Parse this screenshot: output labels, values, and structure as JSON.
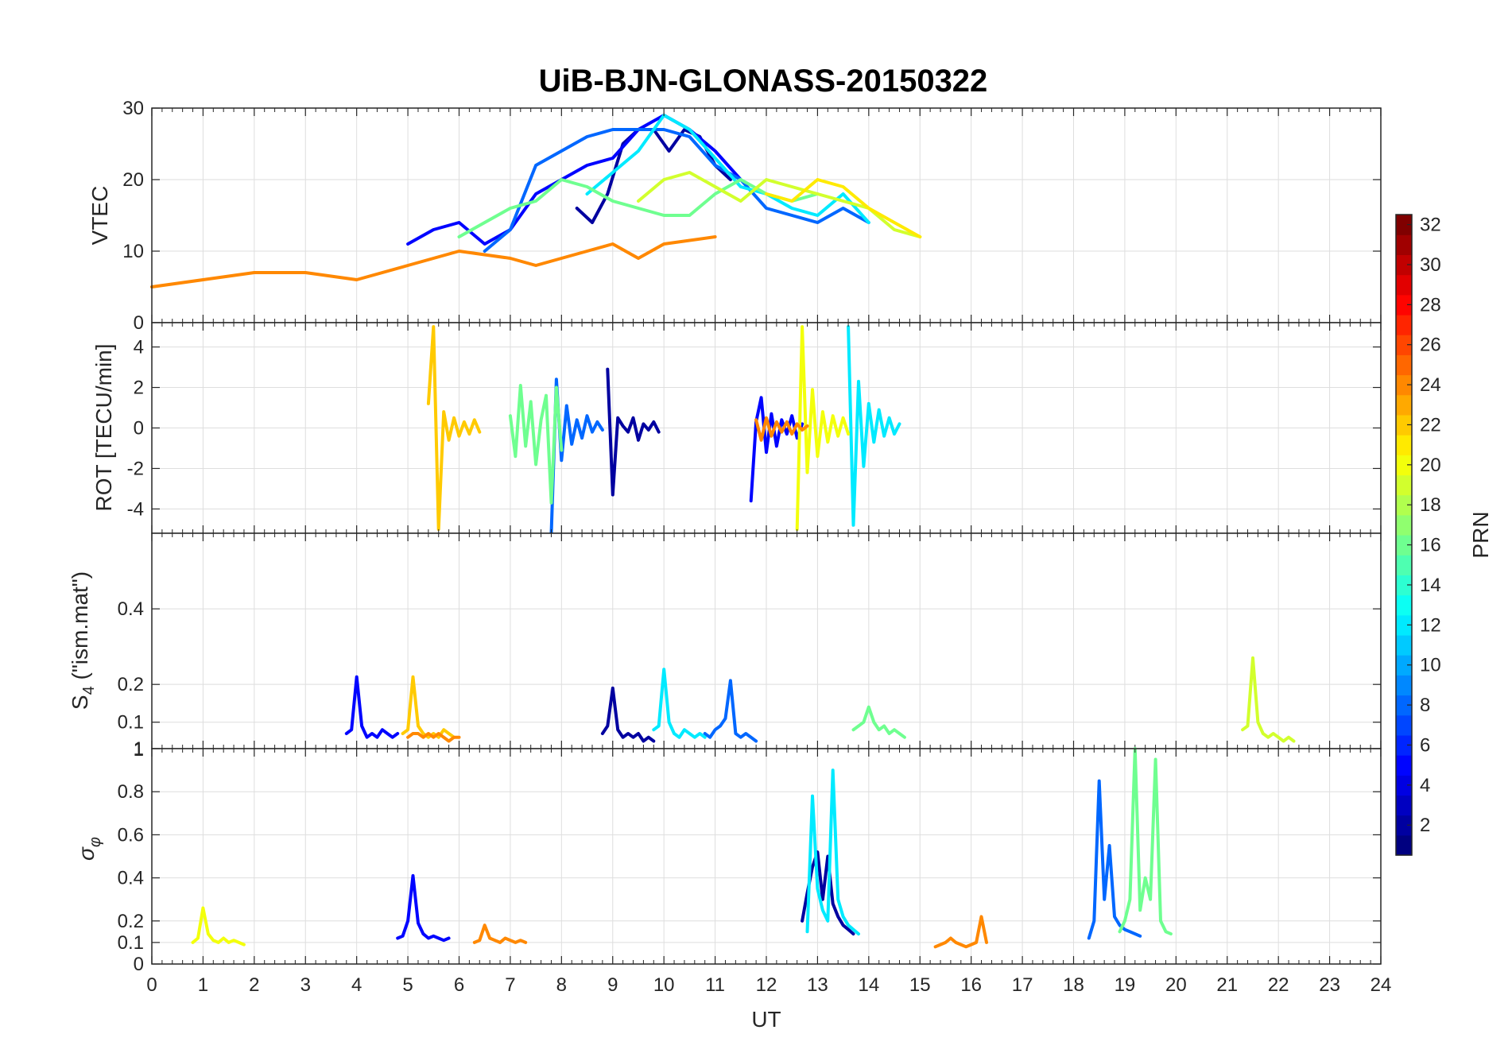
{
  "title": "UiB-BJN-GLONASS-20150322",
  "xlabel": "UT",
  "x_ticks": [
    0,
    1,
    2,
    3,
    4,
    5,
    6,
    7,
    8,
    9,
    10,
    11,
    12,
    13,
    14,
    15,
    16,
    17,
    18,
    19,
    20,
    21,
    22,
    23,
    24
  ],
  "colorbar": {
    "label": "PRN",
    "ticks": [
      2,
      4,
      6,
      8,
      10,
      12,
      14,
      16,
      18,
      20,
      22,
      24,
      26,
      28,
      30,
      32
    ],
    "range": [
      1,
      32
    ],
    "colormap": "jet"
  },
  "panels": [
    {
      "id": "vtec",
      "ylabel": "VTEC",
      "ylim": [
        0,
        30
      ],
      "yticks": [
        0,
        10,
        20,
        30
      ],
      "ytick_labels": [
        "0",
        "10",
        "20",
        "30"
      ]
    },
    {
      "id": "rot",
      "ylabel": "ROT [TECU/min]",
      "ylim": [
        -5.2,
        5.2
      ],
      "yticks": [
        -4,
        -2,
        0,
        2,
        4
      ],
      "ytick_labels": [
        "-4",
        "-2",
        "0",
        "2",
        "4"
      ]
    },
    {
      "id": "s4",
      "ylabel": "S4 (\"ism.mat\")",
      "ylabel_main": "S",
      "ylabel_sub": "4",
      "ylabel_rest": " (\"ism.mat\")",
      "ylim": [
        0.03,
        0.6
      ],
      "yticks": [
        0.1,
        0.2,
        0.4
      ],
      "ytick_labels": [
        "0.1",
        "0.2",
        "0.4"
      ],
      "top_tick_label": "1"
    },
    {
      "id": "sigma",
      "ylabel": "σφ",
      "ylabel_main": "σ",
      "ylabel_sub": "φ",
      "ylim": [
        0,
        1
      ],
      "yticks": [
        0,
        0.1,
        0.2,
        0.4,
        0.6,
        0.8,
        1
      ],
      "ytick_labels": [
        "0",
        "0.1",
        "0.2",
        "0.4",
        "0.6",
        "0.8",
        "1"
      ]
    }
  ],
  "chart_data": [
    {
      "type": "line",
      "panel": "VTEC",
      "ylabel": "VTEC",
      "xlabel": "UT",
      "xlim": [
        0,
        24
      ],
      "ylim": [
        0,
        30
      ],
      "series": [
        {
          "prn": 2,
          "x": [
            8.3,
            8.6,
            8.9,
            9.2,
            9.5,
            9.8,
            10.1,
            10.4,
            10.7,
            11.0,
            11.3
          ],
          "y": [
            16,
            14,
            18,
            25,
            27,
            27,
            24,
            27,
            26,
            22,
            20
          ]
        },
        {
          "prn": 5,
          "x": [
            5.0,
            5.5,
            6.0,
            6.5,
            7.0,
            7.5,
            8.0,
            8.5,
            9.0,
            9.5,
            10.0,
            10.5,
            11.0,
            11.5
          ],
          "y": [
            11,
            13,
            14,
            11,
            13,
            18,
            20,
            22,
            23,
            27,
            29,
            27,
            24,
            20
          ]
        },
        {
          "prn": 8,
          "x": [
            6.5,
            7.0,
            7.5,
            8.0,
            8.5,
            9.0,
            9.5,
            10.0,
            10.5,
            11.0,
            11.5,
            12.0,
            12.5,
            13.0,
            13.5,
            14.0
          ],
          "y": [
            10,
            13,
            22,
            24,
            26,
            27,
            27,
            27,
            26,
            22,
            20,
            16,
            15,
            14,
            16,
            14
          ]
        },
        {
          "prn": 12,
          "x": [
            8.5,
            9.0,
            9.5,
            10.0,
            10.5,
            11.0,
            11.5,
            12.0,
            12.5,
            13.0,
            13.5,
            14.0
          ],
          "y": [
            18,
            21,
            24,
            29,
            27,
            23,
            19,
            18,
            16,
            15,
            18,
            14
          ]
        },
        {
          "prn": 16,
          "x": [
            6.0,
            6.5,
            7.0,
            7.5,
            8.0,
            8.5,
            9.0,
            9.5,
            10.0,
            10.5,
            11.0,
            11.5,
            12.0,
            12.5,
            13.0
          ],
          "y": [
            12,
            14,
            16,
            17,
            20,
            19,
            17,
            16,
            15,
            15,
            18,
            20,
            18,
            17,
            18
          ]
        },
        {
          "prn": 19,
          "x": [
            9.5,
            10.0,
            10.5,
            11.0,
            11.5,
            12.0,
            12.5,
            13.0,
            13.5,
            14.0,
            14.5,
            15.0
          ],
          "y": [
            17,
            20,
            21,
            19,
            17,
            20,
            19,
            18,
            17,
            16,
            13,
            12
          ]
        },
        {
          "prn": 21,
          "x": [
            12.0,
            12.5,
            13.0,
            13.5,
            14.0,
            14.5,
            15.0
          ],
          "y": [
            18,
            17,
            20,
            19,
            16,
            14,
            12
          ]
        },
        {
          "prn": 24,
          "x": [
            0.0,
            1.0,
            2.0,
            3.0,
            4.0,
            5.0,
            6.0,
            7.0,
            7.5,
            8.0,
            8.5,
            9.0,
            9.5,
            10.0,
            11.0
          ],
          "y": [
            5,
            6,
            7,
            7,
            6,
            8,
            10,
            9,
            8,
            9,
            10,
            11,
            9,
            11,
            12
          ]
        }
      ]
    },
    {
      "type": "line",
      "panel": "ROT",
      "ylabel": "ROT [TECU/min]",
      "xlabel": "UT",
      "xlim": [
        0,
        24
      ],
      "ylim": [
        -5.2,
        5.2
      ],
      "series": [
        {
          "prn": 2,
          "x": [
            8.9,
            9.0,
            9.1,
            9.2,
            9.3,
            9.4,
            9.5,
            9.6,
            9.7,
            9.8,
            9.9
          ],
          "y": [
            2.9,
            -3.3,
            0.5,
            0.1,
            -0.2,
            0.5,
            -0.6,
            0.2,
            -0.1,
            0.3,
            -0.2
          ]
        },
        {
          "prn": 5,
          "x": [
            11.7,
            11.8,
            11.9,
            12.0,
            12.1,
            12.2,
            12.3,
            12.4,
            12.5,
            12.6,
            12.7
          ],
          "y": [
            -3.6,
            0.3,
            1.5,
            -1.2,
            0.7,
            -0.9,
            0.4,
            -0.3,
            0.6,
            -0.5,
            0.2
          ]
        },
        {
          "prn": 8,
          "x": [
            7.8,
            7.9,
            8.0,
            8.1,
            8.2,
            8.3,
            8.4,
            8.5,
            8.6,
            8.7,
            8.8
          ],
          "y": [
            -5.2,
            2.4,
            -1.6,
            1.1,
            -0.8,
            0.4,
            -0.5,
            0.6,
            -0.2,
            0.3,
            -0.1
          ]
        },
        {
          "prn": 12,
          "x": [
            13.6,
            13.7,
            13.8,
            13.9,
            14.0,
            14.1,
            14.2,
            14.3,
            14.4,
            14.5,
            14.6
          ],
          "y": [
            5.0,
            -4.8,
            2.3,
            -1.9,
            1.2,
            -0.7,
            0.9,
            -0.4,
            0.5,
            -0.3,
            0.2
          ]
        },
        {
          "prn": 16,
          "x": [
            7.0,
            7.1,
            7.2,
            7.3,
            7.4,
            7.5,
            7.6,
            7.7,
            7.8,
            7.9,
            8.0
          ],
          "y": [
            0.6,
            -1.4,
            2.1,
            -0.9,
            1.3,
            -1.8,
            0.4,
            1.6,
            -3.7,
            2.0,
            -1.1
          ]
        },
        {
          "prn": 20,
          "x": [
            12.6,
            12.7,
            12.8,
            12.9,
            13.0,
            13.1,
            13.2,
            13.3,
            13.4,
            13.5,
            13.6
          ],
          "y": [
            -5.0,
            5.0,
            -2.2,
            1.9,
            -1.4,
            0.8,
            -0.7,
            0.6,
            -0.4,
            0.5,
            -0.3
          ]
        },
        {
          "prn": 22,
          "x": [
            5.4,
            5.5,
            5.6,
            5.7,
            5.8,
            5.9,
            6.0,
            6.1,
            6.2,
            6.3,
            6.4
          ],
          "y": [
            1.2,
            5.0,
            -5.0,
            0.8,
            -0.6,
            0.5,
            -0.4,
            0.3,
            -0.3,
            0.4,
            -0.2
          ]
        },
        {
          "prn": 24,
          "x": [
            11.8,
            11.9,
            12.0,
            12.1,
            12.2,
            12.3,
            12.4,
            12.5,
            12.6,
            12.7,
            12.8
          ],
          "y": [
            0.4,
            -0.6,
            0.5,
            -0.4,
            0.3,
            -0.2,
            0.3,
            -0.3,
            0.2,
            -0.1,
            0.1
          ]
        }
      ]
    },
    {
      "type": "line",
      "panel": "S4",
      "ylabel": "S4 (\"ism.mat\")",
      "xlabel": "UT",
      "xlim": [
        0,
        24
      ],
      "ylim": [
        0.03,
        0.6
      ],
      "series": [
        {
          "prn": 2,
          "x": [
            8.8,
            8.9,
            9.0,
            9.1,
            9.2,
            9.3,
            9.4,
            9.5,
            9.6,
            9.7,
            9.8
          ],
          "y": [
            0.07,
            0.09,
            0.19,
            0.08,
            0.06,
            0.07,
            0.06,
            0.07,
            0.05,
            0.06,
            0.05
          ]
        },
        {
          "prn": 5,
          "x": [
            3.8,
            3.9,
            4.0,
            4.1,
            4.2,
            4.3,
            4.4,
            4.5,
            4.6,
            4.7,
            4.8
          ],
          "y": [
            0.07,
            0.08,
            0.22,
            0.09,
            0.06,
            0.07,
            0.06,
            0.08,
            0.07,
            0.06,
            0.07
          ]
        },
        {
          "prn": 8,
          "x": [
            10.8,
            10.9,
            11.0,
            11.1,
            11.2,
            11.3,
            11.4,
            11.5,
            11.6,
            11.7,
            11.8
          ],
          "y": [
            0.07,
            0.06,
            0.08,
            0.09,
            0.11,
            0.21,
            0.07,
            0.06,
            0.07,
            0.06,
            0.05
          ]
        },
        {
          "prn": 12,
          "x": [
            9.8,
            9.9,
            10.0,
            10.1,
            10.2,
            10.3,
            10.4,
            10.5,
            10.6,
            10.7,
            10.8
          ],
          "y": [
            0.08,
            0.09,
            0.24,
            0.1,
            0.07,
            0.06,
            0.08,
            0.07,
            0.06,
            0.07,
            0.06
          ]
        },
        {
          "prn": 16,
          "x": [
            13.7,
            13.8,
            13.9,
            14.0,
            14.1,
            14.2,
            14.3,
            14.4,
            14.5,
            14.6,
            14.7
          ],
          "y": [
            0.08,
            0.09,
            0.1,
            0.14,
            0.1,
            0.08,
            0.09,
            0.07,
            0.08,
            0.07,
            0.06
          ]
        },
        {
          "prn": 19,
          "x": [
            21.3,
            21.4,
            21.5,
            21.6,
            21.7,
            21.8,
            21.9,
            22.0,
            22.1,
            22.2,
            22.3
          ],
          "y": [
            0.08,
            0.09,
            0.27,
            0.1,
            0.07,
            0.06,
            0.07,
            0.06,
            0.05,
            0.06,
            0.05
          ]
        },
        {
          "prn": 22,
          "x": [
            4.9,
            5.0,
            5.1,
            5.2,
            5.3,
            5.4,
            5.5,
            5.6,
            5.7,
            5.8,
            5.9
          ],
          "y": [
            0.07,
            0.08,
            0.22,
            0.09,
            0.07,
            0.06,
            0.07,
            0.06,
            0.08,
            0.07,
            0.06
          ]
        },
        {
          "prn": 24,
          "x": [
            5.0,
            5.1,
            5.2,
            5.3,
            5.4,
            5.5,
            5.6,
            5.7,
            5.8,
            5.9,
            6.0
          ],
          "y": [
            0.06,
            0.07,
            0.07,
            0.06,
            0.07,
            0.06,
            0.07,
            0.06,
            0.05,
            0.06,
            0.06
          ]
        }
      ]
    },
    {
      "type": "line",
      "panel": "sigma_phi",
      "ylabel": "σφ",
      "xlabel": "UT",
      "xlim": [
        0,
        24
      ],
      "ylim": [
        0,
        1
      ],
      "series": [
        {
          "prn": 2,
          "x": [
            12.7,
            12.8,
            12.9,
            13.0,
            13.1,
            13.2,
            13.3,
            13.4,
            13.5,
            13.6,
            13.7
          ],
          "y": [
            0.2,
            0.33,
            0.45,
            0.52,
            0.3,
            0.5,
            0.28,
            0.22,
            0.18,
            0.16,
            0.14
          ]
        },
        {
          "prn": 5,
          "x": [
            4.8,
            4.9,
            5.0,
            5.1,
            5.2,
            5.3,
            5.4,
            5.5,
            5.6,
            5.7,
            5.8
          ],
          "y": [
            0.12,
            0.13,
            0.2,
            0.41,
            0.19,
            0.14,
            0.12,
            0.13,
            0.12,
            0.11,
            0.12
          ]
        },
        {
          "prn": 8,
          "x": [
            18.3,
            18.4,
            18.5,
            18.6,
            18.7,
            18.8,
            18.9,
            19.0,
            19.1,
            19.2,
            19.3
          ],
          "y": [
            0.12,
            0.2,
            0.85,
            0.3,
            0.55,
            0.22,
            0.18,
            0.16,
            0.15,
            0.14,
            0.13
          ]
        },
        {
          "prn": 12,
          "x": [
            12.8,
            12.9,
            13.0,
            13.1,
            13.2,
            13.3,
            13.4,
            13.5,
            13.6,
            13.7,
            13.8
          ],
          "y": [
            0.15,
            0.78,
            0.35,
            0.25,
            0.2,
            0.9,
            0.3,
            0.22,
            0.18,
            0.16,
            0.14
          ]
        },
        {
          "prn": 16,
          "x": [
            18.9,
            19.0,
            19.1,
            19.2,
            19.3,
            19.4,
            19.5,
            19.6,
            19.7,
            19.8,
            19.9
          ],
          "y": [
            0.15,
            0.2,
            0.3,
            1.0,
            0.25,
            0.4,
            0.3,
            0.95,
            0.2,
            0.15,
            0.14
          ]
        },
        {
          "prn": 20,
          "x": [
            0.8,
            0.9,
            1.0,
            1.1,
            1.2,
            1.3,
            1.4,
            1.5,
            1.6,
            1.7,
            1.8
          ],
          "y": [
            0.1,
            0.12,
            0.26,
            0.14,
            0.11,
            0.1,
            0.12,
            0.1,
            0.11,
            0.1,
            0.09
          ]
        },
        {
          "prn": 24,
          "x": [
            15.3,
            15.4,
            15.5,
            15.6,
            15.7,
            15.8,
            15.9,
            16.0,
            16.1,
            16.2,
            16.3
          ],
          "y": [
            0.08,
            0.09,
            0.1,
            0.12,
            0.1,
            0.09,
            0.08,
            0.09,
            0.1,
            0.22,
            0.1
          ]
        },
        {
          "prn": 24,
          "x": [
            6.3,
            6.4,
            6.5,
            6.6,
            6.7,
            6.8,
            6.9,
            7.0,
            7.1,
            7.2,
            7.3
          ],
          "y": [
            0.1,
            0.11,
            0.18,
            0.12,
            0.11,
            0.1,
            0.12,
            0.11,
            0.1,
            0.11,
            0.1
          ]
        }
      ]
    }
  ]
}
